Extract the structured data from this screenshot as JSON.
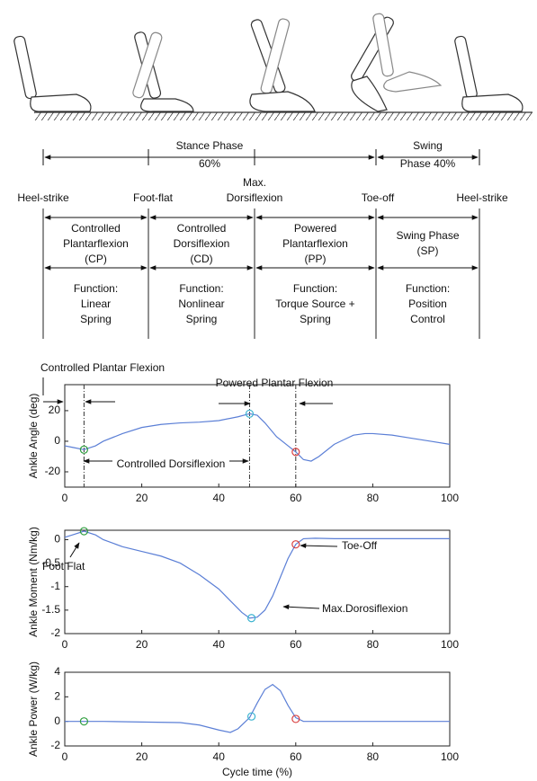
{
  "diagram": {
    "periods": [
      {
        "lines": [
          "Stance Phase",
          "60%"
        ]
      },
      {
        "lines": [
          "Swing",
          "Phase 40%"
        ]
      }
    ],
    "events": [
      {
        "lines": [
          "Heel-strike"
        ]
      },
      {
        "lines": [
          "Foot-flat"
        ]
      },
      {
        "lines": [
          "Max.",
          "Dorsiflexion"
        ]
      },
      {
        "lines": [
          "Toe-off"
        ]
      },
      {
        "lines": [
          "Heel-strike"
        ]
      }
    ],
    "phases": [
      {
        "name": [
          "Controlled",
          "Plantarflexion",
          "(CP)"
        ],
        "function": [
          "Function:",
          "Linear",
          "Spring"
        ]
      },
      {
        "name": [
          "Controlled",
          "Dorsiflexion",
          "(CD)"
        ],
        "function": [
          "Function:",
          "Nonlinear",
          "Spring"
        ]
      },
      {
        "name": [
          "Powered",
          "Plantarflexion",
          "(PP)"
        ],
        "function": [
          "Function:",
          "Torque Source +",
          "Spring"
        ]
      },
      {
        "name": [
          "Swing Phase",
          "(SP)"
        ],
        "function": [
          "Function:",
          "Position",
          "Control"
        ]
      }
    ]
  },
  "chart_data": [
    {
      "type": "line",
      "y_label": "Ankle Angle (deg)",
      "x": [
        0,
        2,
        5,
        8,
        10,
        15,
        20,
        25,
        30,
        35,
        40,
        45,
        48,
        50,
        52,
        55,
        58,
        60,
        62,
        64,
        66,
        70,
        75,
        78,
        80,
        85,
        90,
        95,
        100
      ],
      "series": [
        {
          "color": "#5b7fd6",
          "values": [
            -3,
            -4,
            -5.5,
            -3,
            0,
            5,
            9,
            11,
            12,
            12.5,
            13.5,
            16,
            18,
            17,
            12,
            3,
            -3,
            -7,
            -12,
            -13,
            -10,
            -2,
            4,
            5,
            5,
            4,
            2,
            0,
            -2
          ]
        }
      ],
      "markers": [
        {
          "x": 5,
          "y": -5.5,
          "color": "#2e9e3e"
        },
        {
          "x": 48,
          "y": 18,
          "color": "#3cb4d0"
        },
        {
          "x": 60,
          "y": -7,
          "color": "#d94040"
        }
      ],
      "event_lines": [
        5,
        48,
        60
      ],
      "annotations": [
        "Controlled Plantar Flexion",
        "Powered Plantar Flexion",
        "Controlled Dorsiflexion"
      ],
      "xlim": [
        0,
        100
      ],
      "xticks": [
        0,
        20,
        40,
        60,
        80,
        100
      ],
      "ylim": [
        -30,
        37
      ],
      "yticks": [
        -20,
        0,
        20
      ]
    },
    {
      "type": "line",
      "y_label": "Ankle Moment (Nm/kg)",
      "x": [
        0,
        2,
        5,
        8,
        10,
        15,
        20,
        25,
        30,
        35,
        40,
        43,
        46,
        48,
        50,
        52,
        54,
        56,
        58,
        60,
        62,
        65,
        70,
        80,
        90,
        100
      ],
      "series": [
        {
          "color": "#5b7fd6",
          "values": [
            0.05,
            0.1,
            0.18,
            0.1,
            0,
            -0.15,
            -0.25,
            -0.35,
            -0.5,
            -0.75,
            -1.05,
            -1.3,
            -1.55,
            -1.67,
            -1.65,
            -1.5,
            -1.2,
            -0.8,
            -0.4,
            -0.1,
            0.02,
            0.03,
            0.02,
            0.02,
            0.02,
            0.02
          ]
        }
      ],
      "markers": [
        {
          "x": 5,
          "y": 0.18,
          "color": "#2e9e3e"
        },
        {
          "x": 48.5,
          "y": -1.67,
          "color": "#3cb4d0"
        },
        {
          "x": 60,
          "y": -0.1,
          "color": "#d94040"
        }
      ],
      "annotations": [
        "Foot Flat",
        "Toe-Off",
        "Max.Dorosiflexion"
      ],
      "xlim": [
        0,
        100
      ],
      "xticks": [
        0,
        20,
        40,
        60,
        80,
        100
      ],
      "ylim": [
        -2,
        0.2
      ],
      "yticks": [
        0,
        -0.5,
        -1,
        -1.5,
        -2
      ]
    },
    {
      "type": "line",
      "y_label": "Ankle Power (W/kg)",
      "x_label": "Cycle time (%)",
      "x": [
        0,
        5,
        10,
        20,
        30,
        35,
        40,
        43,
        45,
        48,
        50,
        52,
        54,
        56,
        58,
        60,
        62,
        65,
        100
      ],
      "series": [
        {
          "color": "#5b7fd6",
          "values": [
            0,
            0,
            0,
            -0.05,
            -0.1,
            -0.3,
            -0.7,
            -0.9,
            -0.6,
            0.3,
            1.5,
            2.6,
            3,
            2.5,
            1.3,
            0.3,
            0,
            0,
            0
          ]
        }
      ],
      "markers": [
        {
          "x": 5,
          "y": 0,
          "color": "#2e9e3e"
        },
        {
          "x": 48.5,
          "y": 0.4,
          "color": "#3cb4d0"
        },
        {
          "x": 60,
          "y": 0.2,
          "color": "#d94040"
        }
      ],
      "xlim": [
        0,
        100
      ],
      "xticks": [
        0,
        20,
        40,
        60,
        80,
        100
      ],
      "ylim": [
        -2,
        4
      ],
      "yticks": [
        -2,
        0,
        2,
        4
      ]
    }
  ]
}
